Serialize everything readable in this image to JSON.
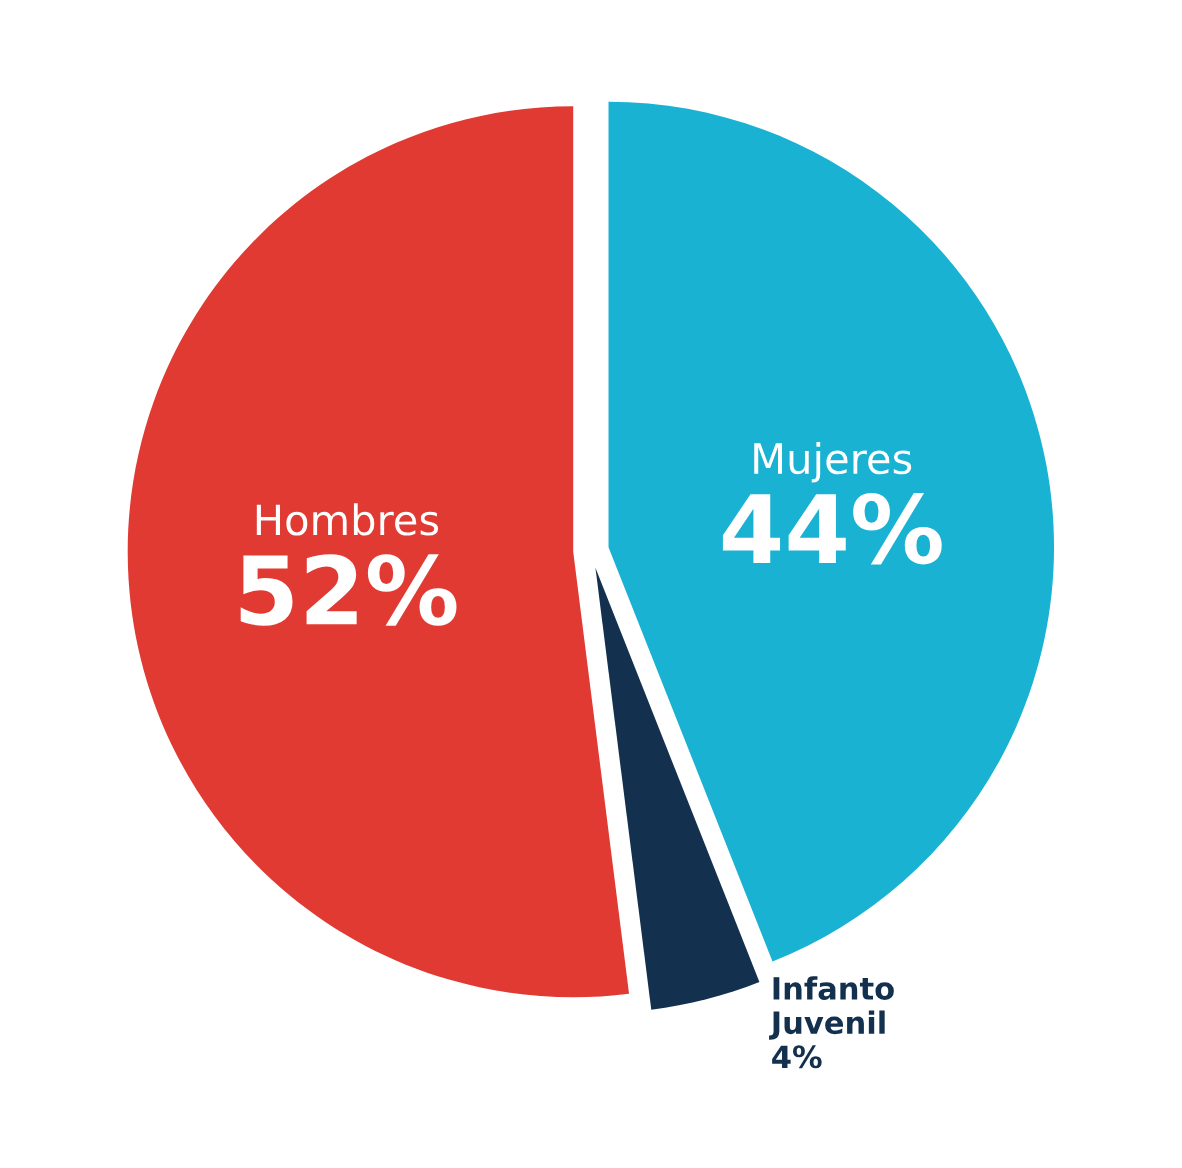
{
  "chart_data": {
    "type": "pie",
    "categories": [
      "Mujeres",
      "Infanto\nJuvenil",
      "Hombres"
    ],
    "values": [
      44,
      4,
      52
    ],
    "value_labels": [
      "44%",
      "4%",
      "52%"
    ],
    "colors": [
      "#19b2d2",
      "#14304f",
      "#e03a33"
    ],
    "legend": false
  }
}
